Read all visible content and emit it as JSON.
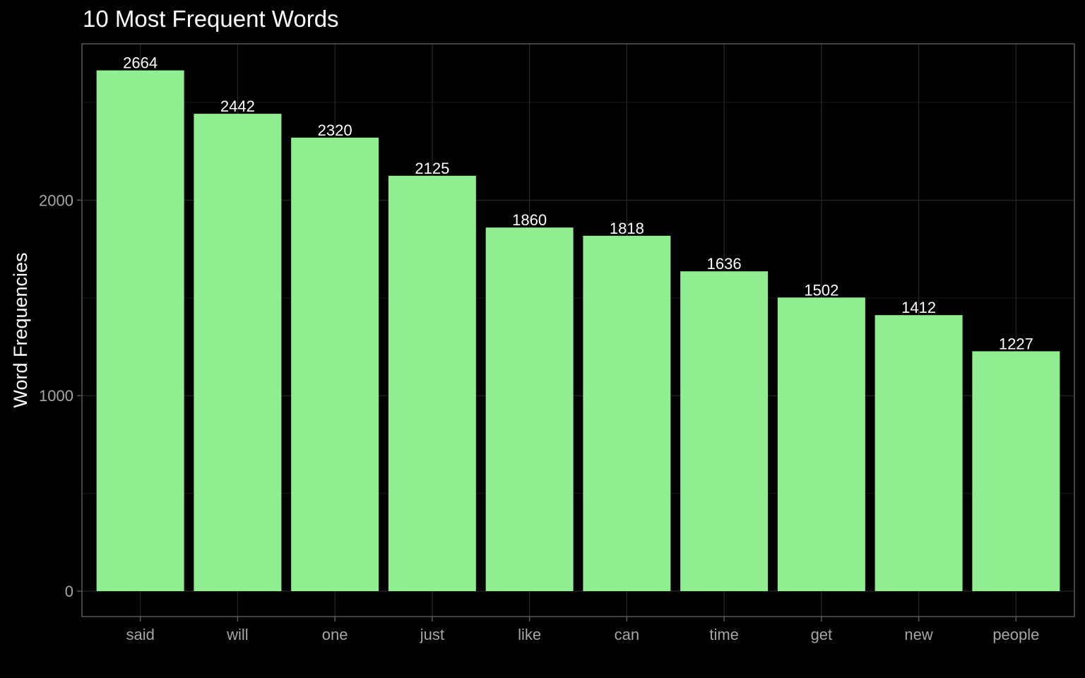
{
  "chart_data": {
    "type": "bar",
    "title": "10 Most Frequent Words",
    "xlabel": "",
    "ylabel": "Word Frequencies",
    "categories": [
      "said",
      "will",
      "one",
      "just",
      "like",
      "can",
      "time",
      "get",
      "new",
      "people"
    ],
    "values": [
      2664,
      2442,
      2320,
      2125,
      1860,
      1818,
      1636,
      1502,
      1412,
      1227
    ],
    "data_labels": [
      "2664",
      "2442",
      "2320",
      "2125",
      "1860",
      "1818",
      "1636",
      "1502",
      "1412",
      "1227"
    ],
    "yticks": [
      0,
      1000,
      2000
    ],
    "ytick_labels": [
      "0",
      "1000",
      "2000"
    ],
    "ylim": [
      -130,
      2800
    ],
    "grid": true,
    "legend": "none",
    "colors": {
      "bar": "#90ee90",
      "background": "#000000",
      "panel_border": "#595959",
      "grid_major": "#262626",
      "grid_minor": "#1a1a1a",
      "tick_text": "#a6a6a6",
      "text": "#ffffff"
    }
  }
}
